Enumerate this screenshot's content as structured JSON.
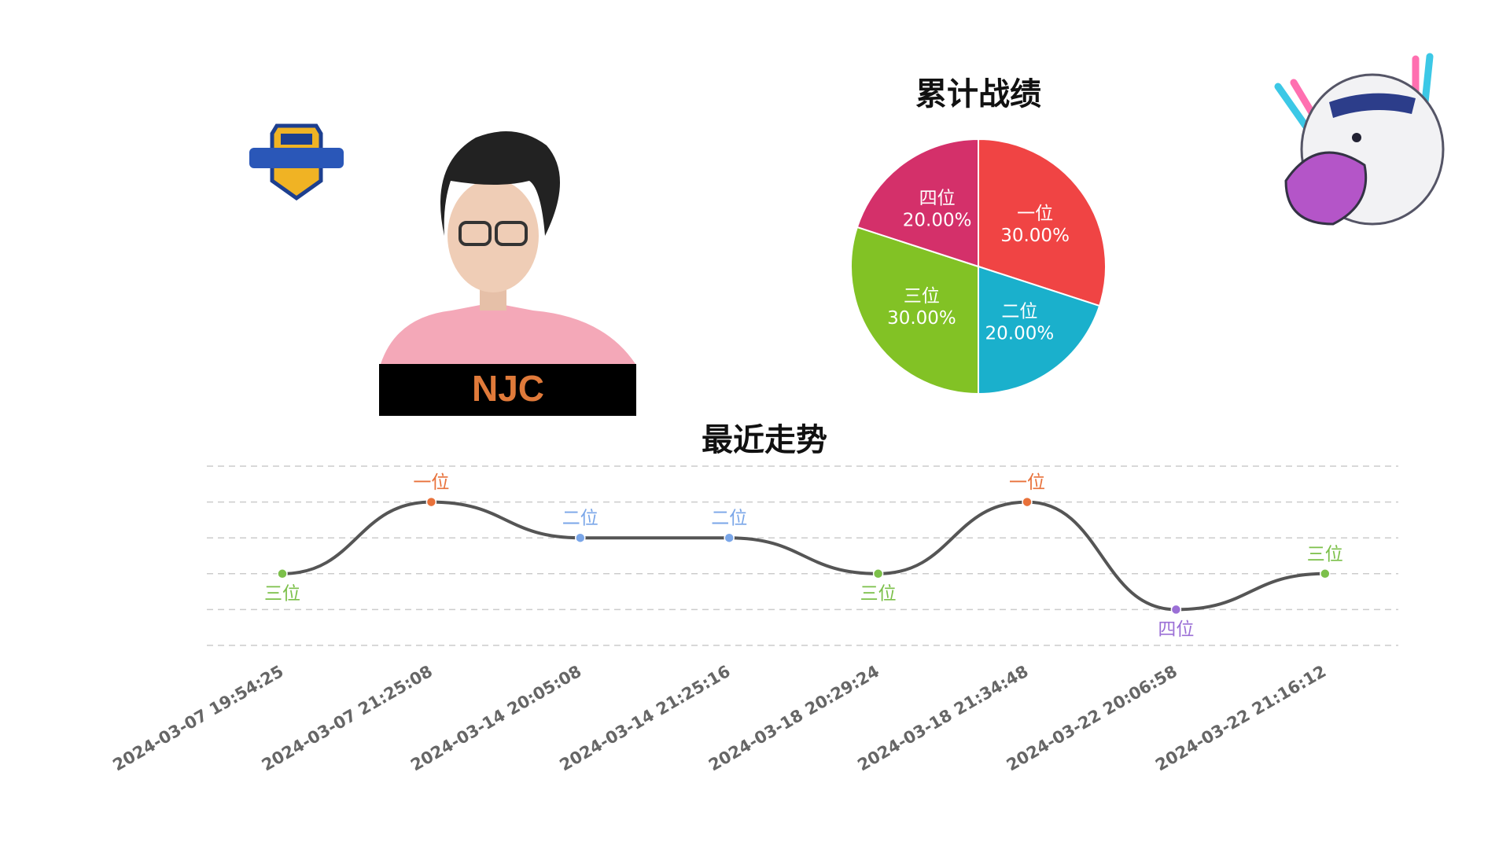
{
  "player": {
    "name": "NJC"
  },
  "chart_data": [
    {
      "type": "pie",
      "title": "累计战绩",
      "categories": [
        "一位",
        "二位",
        "三位",
        "四位"
      ],
      "values": [
        30,
        20,
        30,
        20
      ],
      "value_labels": [
        "30.00%",
        "20.00%",
        "30.00%",
        "20.00%"
      ],
      "colors": [
        "#f04444",
        "#1ab0cc",
        "#82c225",
        "#d4306a"
      ]
    },
    {
      "type": "line",
      "title": "最近走势",
      "categories": [
        "2024-03-07 19:54:25",
        "2024-03-07 21:25:08",
        "2024-03-14 20:05:08",
        "2024-03-14 21:25:16",
        "2024-03-18 20:29:24",
        "2024-03-18 21:34:48",
        "2024-03-22 20:06:58",
        "2024-03-22 21:16:12"
      ],
      "values": [
        3,
        1,
        2,
        2,
        3,
        1,
        4,
        3
      ],
      "value_labels": [
        "三位",
        "一位",
        "二位",
        "二位",
        "三位",
        "一位",
        "四位",
        "三位"
      ],
      "rank_colors": [
        "#e8713a",
        "#7aa6e8",
        "#7cc04a",
        "#9b6fd6"
      ],
      "line_color": "#555555",
      "ylim": [
        0,
        5
      ],
      "inverted": true,
      "yticks": [
        0,
        1,
        2,
        3,
        4,
        5
      ],
      "grid": true
    }
  ]
}
